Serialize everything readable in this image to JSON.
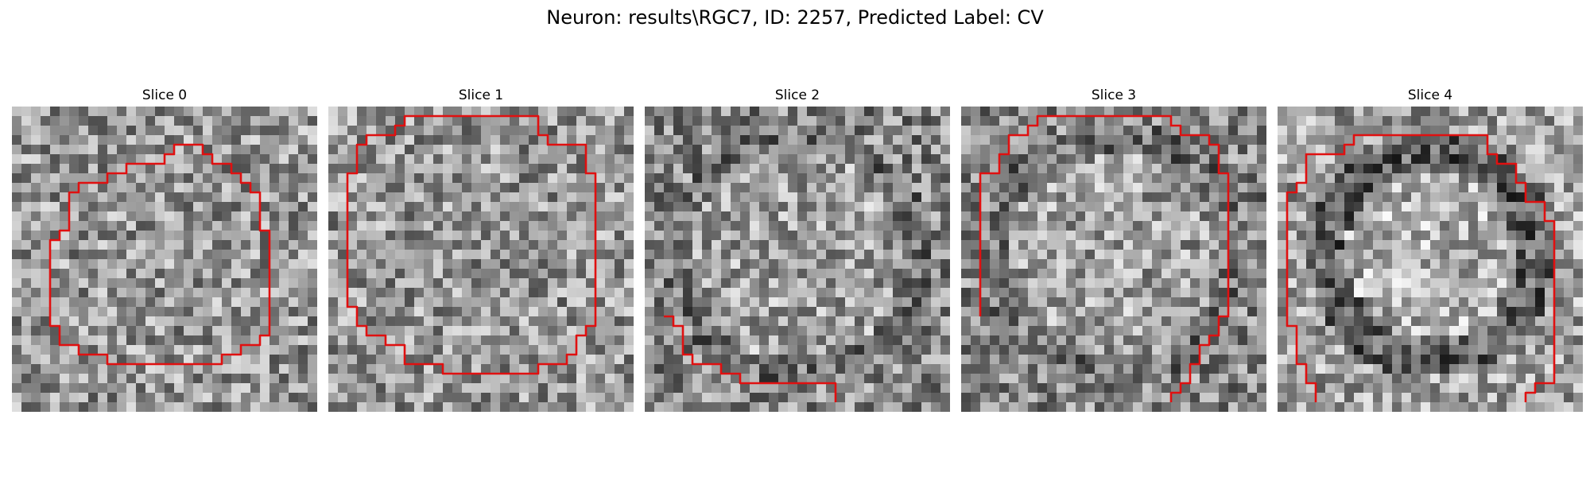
{
  "figure": {
    "title": "Neuron: results\\RGC7, ID: 2257, Predicted Label: CV"
  },
  "panels": [
    {
      "title": "Slice 0"
    },
    {
      "title": "Slice 1"
    },
    {
      "title": "Slice 2"
    },
    {
      "title": "Slice 3"
    },
    {
      "title": "Slice 4"
    }
  ],
  "colors": {
    "outline": "#e01010",
    "colormap": "gray"
  }
}
